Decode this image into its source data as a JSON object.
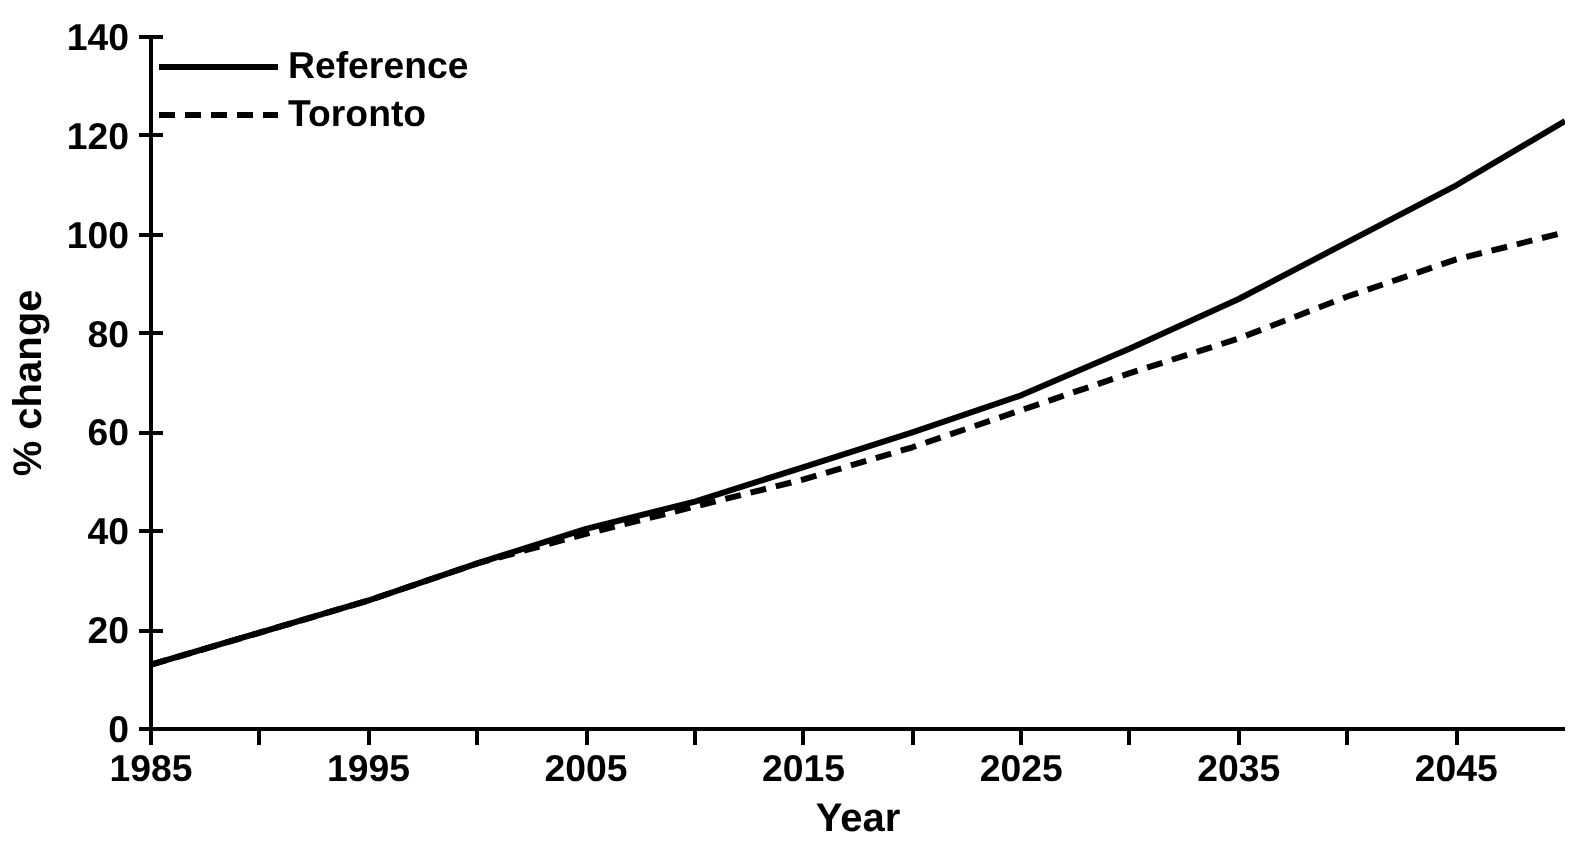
{
  "chart_data": {
    "type": "line",
    "xlabel": "Year",
    "ylabel": "% change",
    "x": [
      1985,
      1990,
      1995,
      2000,
      2005,
      2010,
      2015,
      2020,
      2025,
      2030,
      2035,
      2040,
      2045,
      2050
    ],
    "series": [
      {
        "name": "Reference",
        "color": "#000000",
        "line_style": "solid",
        "values": [
          13,
          19.5,
          26,
          33.5,
          40.5,
          46,
          53,
          60,
          67.5,
          77,
          87,
          98.5,
          110,
          123
        ]
      },
      {
        "name": "Toronto",
        "color": "#000000",
        "line_style": "dashed",
        "values": [
          13,
          19.5,
          26,
          33.5,
          39.5,
          45,
          50.5,
          57,
          64.5,
          72,
          79,
          87.5,
          95,
          100.5
        ]
      }
    ],
    "xlim": [
      1985,
      2050
    ],
    "xticks": [
      1985,
      {
        "value": 1990,
        "label": null
      },
      1995,
      {
        "value": 2000,
        "label": null
      },
      2005,
      {
        "value": 2010,
        "label": null
      },
      2015,
      {
        "value": 2020,
        "label": null
      },
      2025,
      {
        "value": 2030,
        "label": null
      },
      2035,
      {
        "value": 2040,
        "label": null
      },
      2045
    ],
    "ylim": [
      0,
      140
    ],
    "yticks": [
      0,
      20,
      40,
      60,
      80,
      100,
      120,
      140
    ],
    "grid": false,
    "legend": "top left",
    "marker": "none"
  }
}
